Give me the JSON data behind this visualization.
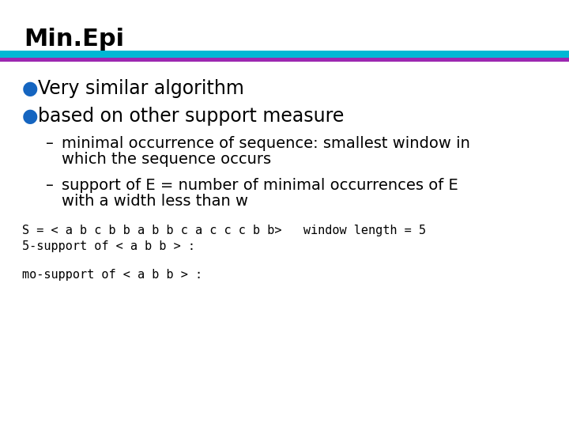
{
  "title": "Min.Epi",
  "title_fontsize": 22,
  "title_color": "#000000",
  "bg_color": "#ffffff",
  "bar1_color": "#00b8d4",
  "bar2_color": "#9c27b0",
  "bullet_color": "#1565c0",
  "bullet1": "Very similar algorithm",
  "bullet2": "based on other support measure",
  "sub1_line1": "minimal occurrence of sequence: smallest window in",
  "sub1_line2": "which the sequence occurs",
  "sub2_line1": "support of E = number of minimal occurrences of E",
  "sub2_line2": "with a width less than w",
  "code_line1": "S = < a b c b b a b b c a c c c b b>   window length = 5",
  "code_line2": "5-support of < a b b > :",
  "code_line3": "mo-support of < a b b > :",
  "bullet_fontsize": 17,
  "sub_fontsize": 14,
  "code_fontsize": 11
}
